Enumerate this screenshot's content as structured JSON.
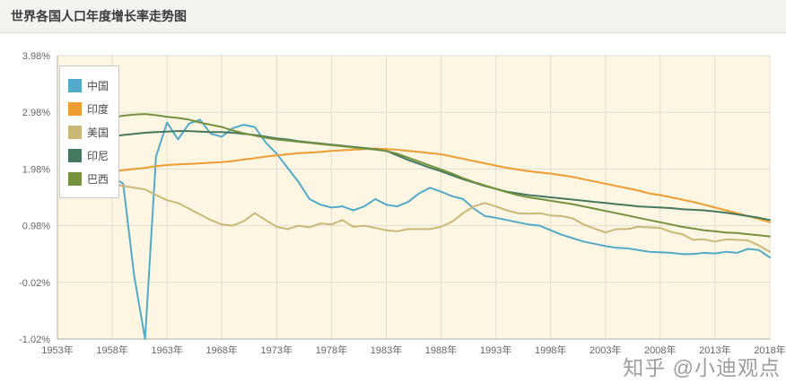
{
  "header": {
    "title": "世界各国人口年度增长率走势图"
  },
  "watermark": {
    "text": "知乎 @小迪观点"
  },
  "chart_data": {
    "type": "line",
    "title": "世界各国人口年度增长率走势图",
    "y_unit": "%",
    "x_min": 1953,
    "x_max": 2018,
    "y_min": -1.02,
    "y_max": 3.98,
    "grid": true,
    "legend_position": "top-left",
    "plot_background": "#fdf6e3",
    "grid_color": "#e2ddcd",
    "axis_color": "#b3afa2",
    "x_tick_labels": [
      "1953年",
      "1958年",
      "1963年",
      "1968年",
      "1973年",
      "1978年",
      "1983年",
      "1988年",
      "1993年",
      "1998年",
      "2003年",
      "2008年",
      "2013年",
      "2018年"
    ],
    "y_tick_labels": [
      "3.98%",
      "2.98%",
      "1.98%",
      "0.98%",
      "-0.02%",
      "-1.02%"
    ],
    "years": [
      1956,
      1957,
      1958,
      1959,
      1960,
      1961,
      1962,
      1963,
      1964,
      1965,
      1966,
      1967,
      1968,
      1969,
      1970,
      1971,
      1972,
      1973,
      1974,
      1975,
      1976,
      1977,
      1978,
      1979,
      1980,
      1981,
      1982,
      1983,
      1984,
      1985,
      1986,
      1987,
      1988,
      1989,
      1990,
      1991,
      1992,
      1993,
      1994,
      1995,
      1996,
      1997,
      1998,
      1999,
      2000,
      2001,
      2002,
      2003,
      2004,
      2005,
      2006,
      2007,
      2008,
      2009,
      2010,
      2011,
      2012,
      2013,
      2014,
      2015,
      2016,
      2017,
      2018
    ],
    "series": [
      {
        "name": "中国",
        "color": "#53aac8",
        "values": [
          1.82,
          1.87,
          1.85,
          1.72,
          0.1,
          -1.02,
          2.2,
          2.8,
          2.5,
          2.78,
          2.85,
          2.6,
          2.55,
          2.7,
          2.76,
          2.72,
          2.45,
          2.25,
          2.0,
          1.75,
          1.45,
          1.35,
          1.3,
          1.32,
          1.25,
          1.32,
          1.45,
          1.35,
          1.32,
          1.4,
          1.55,
          1.65,
          1.58,
          1.5,
          1.45,
          1.28,
          1.15,
          1.12,
          1.08,
          1.04,
          1.0,
          0.98,
          0.9,
          0.82,
          0.76,
          0.7,
          0.66,
          0.62,
          0.59,
          0.58,
          0.55,
          0.52,
          0.51,
          0.5,
          0.48,
          0.48,
          0.5,
          0.49,
          0.52,
          0.5,
          0.57,
          0.55,
          0.42
        ]
      },
      {
        "name": "印度",
        "color": "#ed9d31",
        "values": [
          1.88,
          1.9,
          1.93,
          1.96,
          1.98,
          2.0,
          2.03,
          2.05,
          2.06,
          2.07,
          2.08,
          2.09,
          2.1,
          2.12,
          2.15,
          2.17,
          2.2,
          2.22,
          2.24,
          2.26,
          2.27,
          2.28,
          2.3,
          2.31,
          2.32,
          2.33,
          2.34,
          2.33,
          2.32,
          2.3,
          2.28,
          2.26,
          2.24,
          2.2,
          2.16,
          2.12,
          2.08,
          2.04,
          2.0,
          1.97,
          1.94,
          1.92,
          1.9,
          1.87,
          1.84,
          1.8,
          1.76,
          1.72,
          1.68,
          1.64,
          1.6,
          1.55,
          1.52,
          1.48,
          1.44,
          1.4,
          1.35,
          1.3,
          1.25,
          1.2,
          1.15,
          1.1,
          1.04
        ]
      },
      {
        "name": "美国",
        "color": "#c9b877",
        "values": [
          1.78,
          1.76,
          1.72,
          1.68,
          1.65,
          1.62,
          1.52,
          1.43,
          1.38,
          1.28,
          1.18,
          1.08,
          1.0,
          0.98,
          1.06,
          1.2,
          1.08,
          0.96,
          0.92,
          0.98,
          0.95,
          1.02,
          1.0,
          1.08,
          0.96,
          0.98,
          0.94,
          0.9,
          0.88,
          0.92,
          0.92,
          0.92,
          0.96,
          1.05,
          1.2,
          1.32,
          1.38,
          1.32,
          1.25,
          1.2,
          1.19,
          1.2,
          1.16,
          1.15,
          1.11,
          1.0,
          0.93,
          0.86,
          0.92,
          0.92,
          0.96,
          0.95,
          0.94,
          0.87,
          0.83,
          0.73,
          0.74,
          0.7,
          0.74,
          0.73,
          0.72,
          0.63,
          0.52
        ]
      },
      {
        "name": "印尼",
        "color": "#45795d",
        "values": [
          2.48,
          2.52,
          2.55,
          2.58,
          2.6,
          2.62,
          2.63,
          2.64,
          2.65,
          2.65,
          2.64,
          2.63,
          2.63,
          2.62,
          2.6,
          2.58,
          2.55,
          2.52,
          2.5,
          2.47,
          2.45,
          2.43,
          2.41,
          2.39,
          2.37,
          2.35,
          2.33,
          2.3,
          2.22,
          2.14,
          2.07,
          2.0,
          1.94,
          1.87,
          1.8,
          1.74,
          1.68,
          1.63,
          1.58,
          1.55,
          1.52,
          1.5,
          1.48,
          1.46,
          1.44,
          1.42,
          1.4,
          1.38,
          1.36,
          1.34,
          1.32,
          1.31,
          1.3,
          1.29,
          1.27,
          1.26,
          1.25,
          1.23,
          1.21,
          1.18,
          1.15,
          1.12,
          1.08
        ]
      },
      {
        "name": "巴西",
        "color": "#74923e",
        "values": [
          2.82,
          2.86,
          2.89,
          2.92,
          2.94,
          2.95,
          2.93,
          2.9,
          2.88,
          2.85,
          2.8,
          2.76,
          2.72,
          2.66,
          2.61,
          2.57,
          2.53,
          2.5,
          2.48,
          2.46,
          2.44,
          2.42,
          2.4,
          2.38,
          2.36,
          2.34,
          2.32,
          2.3,
          2.25,
          2.18,
          2.11,
          2.04,
          1.97,
          1.9,
          1.82,
          1.75,
          1.69,
          1.63,
          1.57,
          1.52,
          1.48,
          1.45,
          1.42,
          1.39,
          1.36,
          1.32,
          1.28,
          1.24,
          1.2,
          1.16,
          1.12,
          1.08,
          1.04,
          1.0,
          0.96,
          0.93,
          0.9,
          0.88,
          0.86,
          0.85,
          0.83,
          0.81,
          0.79
        ]
      }
    ]
  }
}
